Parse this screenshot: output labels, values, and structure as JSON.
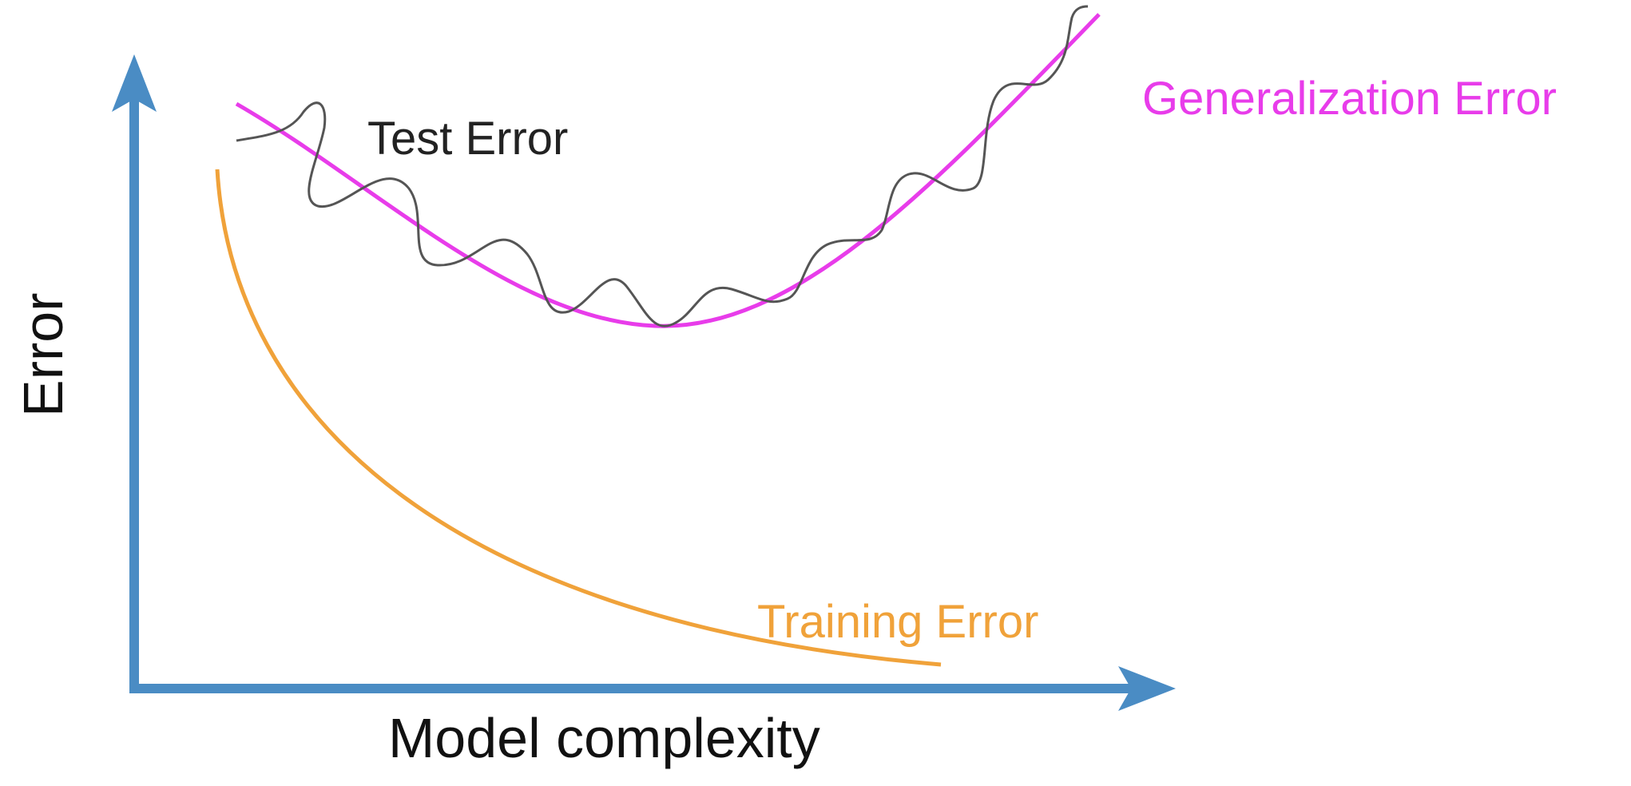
{
  "axes": {
    "x_label": "Model complexity",
    "y_label": "Error"
  },
  "curves": {
    "test_error": {
      "label": "Test Error",
      "color": "#555555"
    },
    "generalization_error": {
      "label": "Generalization Error",
      "color": "#e83cea"
    },
    "training_error": {
      "label": "Training Error",
      "color": "#f0a23a"
    }
  },
  "colors": {
    "axis": "#4a8cc4"
  }
}
